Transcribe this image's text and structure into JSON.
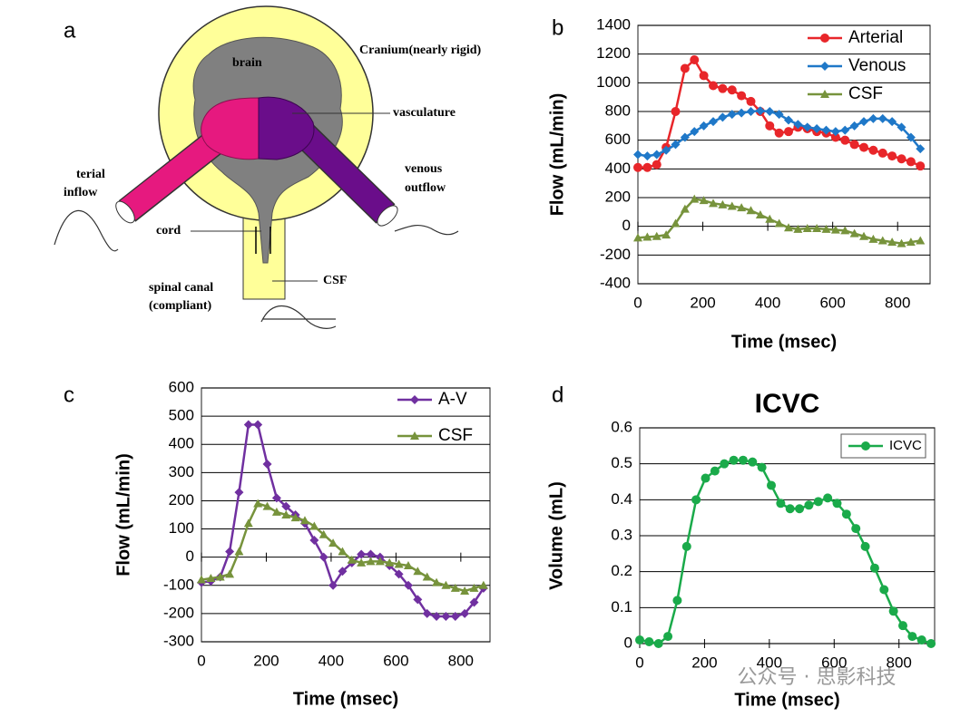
{
  "diagram": {
    "panel": "a",
    "labels": {
      "brain": "brain",
      "cranium": "Cranium(nearly rigid)",
      "vasculature": "vasculature",
      "arterial": "terial",
      "inflow": "inflow",
      "venous": "venous",
      "outflow": "outflow",
      "cord": "cord",
      "csf": "CSF",
      "spinal_canal": "spinal canal",
      "compliant": "(compliant)"
    }
  },
  "watermark": "公众号 · 思影科技",
  "chart_data": [
    {
      "panel": "b",
      "type": "line",
      "xlabel": "Time (msec)",
      "ylabel": "Flow (mL/min)",
      "xlim": [
        0,
        900
      ],
      "xticks": [
        0,
        200,
        400,
        600,
        800
      ],
      "ylim": [
        -400,
        1400
      ],
      "yticks": [
        -400,
        -200,
        0,
        200,
        400,
        600,
        800,
        1000,
        1200,
        1400
      ],
      "grid": true,
      "legend": "top-right",
      "x": [
        0,
        29,
        58,
        87,
        116,
        145,
        174,
        203,
        232,
        261,
        290,
        319,
        348,
        377,
        406,
        435,
        464,
        493,
        522,
        551,
        580,
        609,
        638,
        667,
        696,
        725,
        754,
        783,
        812,
        841,
        870
      ],
      "series": [
        {
          "name": "Arterial",
          "color": "#e8262a",
          "marker": "circle",
          "values": [
            410,
            410,
            430,
            550,
            800,
            1100,
            1160,
            1050,
            980,
            960,
            950,
            910,
            870,
            800,
            700,
            650,
            660,
            690,
            680,
            660,
            650,
            620,
            600,
            570,
            550,
            530,
            510,
            490,
            470,
            450,
            420
          ]
        },
        {
          "name": "Venous",
          "color": "#1f78c8",
          "marker": "diamond",
          "values": [
            500,
            490,
            500,
            530,
            570,
            620,
            660,
            700,
            730,
            760,
            780,
            790,
            800,
            805,
            800,
            780,
            740,
            710,
            690,
            680,
            670,
            660,
            670,
            700,
            730,
            750,
            750,
            730,
            690,
            620,
            540
          ]
        },
        {
          "name": "CSF",
          "color": "#77933c",
          "marker": "triangle",
          "values": [
            -80,
            -75,
            -70,
            -60,
            20,
            120,
            190,
            180,
            160,
            150,
            140,
            130,
            110,
            80,
            50,
            20,
            -10,
            -20,
            -15,
            -15,
            -20,
            -25,
            -30,
            -50,
            -70,
            -90,
            -100,
            -110,
            -120,
            -110,
            -100
          ]
        }
      ]
    },
    {
      "panel": "c",
      "type": "line",
      "xlabel": "Time (msec)",
      "ylabel": "Flow (mL/min)",
      "xlim": [
        0,
        890
      ],
      "xticks": [
        0,
        200,
        400,
        600,
        800
      ],
      "ylim": [
        -300,
        600
      ],
      "yticks": [
        -300,
        -200,
        -100,
        0,
        100,
        200,
        300,
        400,
        500,
        600
      ],
      "grid": true,
      "legend": "top-right",
      "x": [
        0,
        29,
        58,
        87,
        116,
        145,
        174,
        203,
        232,
        261,
        290,
        319,
        348,
        377,
        406,
        435,
        464,
        493,
        522,
        551,
        580,
        609,
        638,
        667,
        696,
        725,
        754,
        783,
        812,
        841,
        870
      ],
      "series": [
        {
          "name": "A-V",
          "color": "#7030a0",
          "marker": "diamond",
          "values": [
            -90,
            -85,
            -70,
            20,
            230,
            470,
            470,
            330,
            210,
            180,
            150,
            120,
            60,
            0,
            -100,
            -50,
            -20,
            10,
            10,
            0,
            -30,
            -60,
            -100,
            -150,
            -200,
            -210,
            -210,
            -210,
            -200,
            -160,
            -110
          ]
        },
        {
          "name": "CSF",
          "color": "#77933c",
          "marker": "triangle",
          "values": [
            -80,
            -75,
            -70,
            -60,
            20,
            120,
            190,
            180,
            160,
            150,
            140,
            130,
            110,
            80,
            50,
            20,
            -10,
            -20,
            -15,
            -15,
            -20,
            -25,
            -30,
            -50,
            -70,
            -90,
            -100,
            -110,
            -120,
            -110,
            -100
          ]
        }
      ]
    },
    {
      "panel": "d",
      "type": "line",
      "title": "ICVC",
      "xlabel": "Time (msec)",
      "ylabel": "Volume (mL)",
      "xlim": [
        0,
        910
      ],
      "xticks": [
        0,
        200,
        400,
        600,
        800
      ],
      "ylim": [
        0,
        0.6
      ],
      "yticks": [
        0,
        0.1,
        0.2,
        0.3,
        0.4,
        0.5,
        0.6
      ],
      "grid": true,
      "legend": "top-right",
      "x": [
        0,
        29,
        58,
        87,
        116,
        145,
        174,
        203,
        232,
        261,
        290,
        319,
        348,
        377,
        406,
        435,
        464,
        493,
        522,
        551,
        580,
        609,
        638,
        667,
        696,
        725,
        754,
        783,
        812,
        841,
        870,
        899
      ],
      "series": [
        {
          "name": "ICVC",
          "color": "#1aaa4a",
          "marker": "circle",
          "values": [
            0.01,
            0.005,
            0,
            0.02,
            0.12,
            0.27,
            0.4,
            0.46,
            0.48,
            0.5,
            0.51,
            0.51,
            0.505,
            0.49,
            0.44,
            0.39,
            0.375,
            0.375,
            0.385,
            0.395,
            0.405,
            0.39,
            0.36,
            0.32,
            0.27,
            0.21,
            0.15,
            0.09,
            0.05,
            0.02,
            0.01,
            0
          ]
        }
      ]
    }
  ]
}
